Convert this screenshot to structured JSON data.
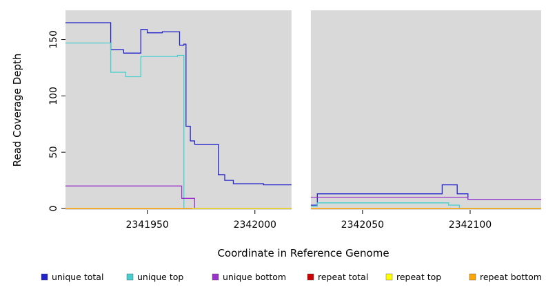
{
  "axes": {
    "x_title": "Coordinate in Reference Genome",
    "y_title": "Read Coverage Depth"
  },
  "chart_data": {
    "type": "line",
    "title": "",
    "xlabel": "Coordinate in Reference Genome",
    "ylabel": "Read Coverage Depth",
    "xlim": [
      2341912,
      2342133
    ],
    "ylim": [
      0,
      176
    ],
    "xticks": [
      2341950,
      2342000,
      2342050,
      2342100
    ],
    "yticks": [
      0,
      50,
      100,
      150
    ],
    "plot_background": "#d9d9d9",
    "gap_region": {
      "x_start": 2342017,
      "x_end": 2342026,
      "color": "#ffffff"
    },
    "series": [
      {
        "name": "unique total",
        "color": "#2222cc",
        "segments": [
          [
            [
              2341912,
              165
            ],
            [
              2341933,
              165
            ],
            [
              2341933,
              141
            ],
            [
              2341939,
              141
            ],
            [
              2341939,
              138
            ],
            [
              2341947,
              138
            ],
            [
              2341947,
              159
            ],
            [
              2341950,
              159
            ],
            [
              2341950,
              156
            ],
            [
              2341957,
              156
            ],
            [
              2341957,
              157
            ],
            [
              2341965,
              157
            ],
            [
              2341965,
              145
            ],
            [
              2341967,
              145
            ],
            [
              2341967,
              146
            ],
            [
              2341968,
              146
            ],
            [
              2341968,
              73
            ],
            [
              2341970,
              73
            ],
            [
              2341970,
              60
            ],
            [
              2341972,
              60
            ],
            [
              2341972,
              57
            ],
            [
              2341983,
              57
            ],
            [
              2341983,
              30
            ],
            [
              2341986,
              30
            ],
            [
              2341986,
              25
            ],
            [
              2341990,
              25
            ],
            [
              2341990,
              22
            ],
            [
              2342004,
              22
            ],
            [
              2342004,
              21
            ],
            [
              2342017,
              21
            ]
          ],
          [
            [
              2342026,
              3
            ],
            [
              2342029,
              3
            ],
            [
              2342029,
              13
            ],
            [
              2342087,
              13
            ],
            [
              2342087,
              21
            ],
            [
              2342094,
              21
            ],
            [
              2342094,
              13
            ],
            [
              2342099,
              13
            ],
            [
              2342099,
              8
            ],
            [
              2342133,
              8
            ]
          ]
        ]
      },
      {
        "name": "unique top",
        "color": "#45cfcf",
        "segments": [
          [
            [
              2341912,
              147
            ],
            [
              2341933,
              147
            ],
            [
              2341933,
              121
            ],
            [
              2341940,
              121
            ],
            [
              2341940,
              117
            ],
            [
              2341947,
              117
            ],
            [
              2341947,
              135
            ],
            [
              2341964,
              135
            ],
            [
              2341964,
              136
            ],
            [
              2341967,
              136
            ],
            [
              2341967,
              0
            ],
            [
              2342017,
              0
            ]
          ],
          [
            [
              2342026,
              2
            ],
            [
              2342029,
              2
            ],
            [
              2342029,
              5
            ],
            [
              2342090,
              5
            ],
            [
              2342090,
              3
            ],
            [
              2342095,
              3
            ],
            [
              2342095,
              0
            ],
            [
              2342133,
              0
            ]
          ]
        ]
      },
      {
        "name": "unique bottom",
        "color": "#9933cc",
        "segments": [
          [
            [
              2341912,
              20
            ],
            [
              2341966,
              20
            ],
            [
              2341966,
              9
            ],
            [
              2341972,
              9
            ],
            [
              2341972,
              0
            ],
            [
              2342017,
              0
            ]
          ],
          [
            [
              2342026,
              10
            ],
            [
              2342099,
              10
            ],
            [
              2342099,
              8
            ],
            [
              2342133,
              8
            ]
          ]
        ]
      },
      {
        "name": "repeat total",
        "color": "#cc0000",
        "segments": [
          [
            [
              2341912,
              0
            ],
            [
              2342017,
              0
            ]
          ],
          [
            [
              2342026,
              0
            ],
            [
              2342133,
              0
            ]
          ]
        ]
      },
      {
        "name": "repeat top",
        "color": "#ffff00",
        "segments": [
          [
            [
              2341912,
              0
            ],
            [
              2342017,
              0
            ]
          ],
          [
            [
              2342026,
              0
            ],
            [
              2342133,
              0
            ]
          ]
        ]
      },
      {
        "name": "repeat bottom",
        "color": "#ffa500",
        "segments": [
          [
            [
              2341912,
              0
            ],
            [
              2341971,
              0
            ]
          ],
          [
            [
              2342026,
              0
            ],
            [
              2342133,
              0
            ]
          ]
        ]
      }
    ]
  },
  "legend": {
    "items": [
      {
        "label": "unique total",
        "color": "#2222cc"
      },
      {
        "label": "unique top",
        "color": "#45cfcf"
      },
      {
        "label": "unique bottom",
        "color": "#9933cc"
      },
      {
        "label": "repeat total",
        "color": "#cc0000"
      },
      {
        "label": "repeat top",
        "color": "#ffff00"
      },
      {
        "label": "repeat bottom",
        "color": "#ffa500"
      }
    ]
  }
}
